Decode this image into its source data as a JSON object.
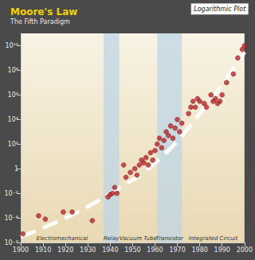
{
  "chart_data": {
    "type": "scatter",
    "title": "Moore's Law",
    "subtitle": "The Fifth Paradigm",
    "annotations": [
      "Logarithmic Plot"
    ],
    "log": "y",
    "grid": false,
    "xlim": [
      1900,
      2000
    ],
    "xticks": [
      1900,
      1910,
      1920,
      1930,
      1940,
      1950,
      1960,
      1970,
      1980,
      1990,
      2000
    ],
    "ylim": [
      1e-06,
      100000000000
    ],
    "yticks": [
      {
        "value": 1e-06,
        "label": "10⁻⁶"
      },
      {
        "value": 0.0001,
        "label": "10⁻⁴"
      },
      {
        "value": 0.01,
        "label": "10⁻²"
      },
      1,
      {
        "value": 100,
        "label": "10²"
      },
      {
        "value": 10000,
        "label": "10⁴"
      },
      {
        "value": 1000000,
        "label": "10⁶"
      },
      {
        "value": 100000000,
        "label": "10⁸"
      },
      {
        "value": 10000000000,
        "label": "10¹⁰"
      }
    ],
    "eras": [
      {
        "label": "Electromechanical",
        "start": 1900,
        "end": 1937
      },
      {
        "label": "Relay",
        "start": 1937,
        "end": 1944
      },
      {
        "label": "Vacuum Tube",
        "start": 1944,
        "end": 1961
      },
      {
        "label": "Transistor",
        "start": 1961,
        "end": 1972
      },
      {
        "label": "Integrated Circuit",
        "start": 1972,
        "end": 2000
      }
    ],
    "series": [
      {
        "type": "line",
        "color": "#ffffff",
        "line_style": "dashed",
        "x": [
          1900,
          1920,
          1940,
          1960,
          1980,
          2000
        ],
        "values": [
          3e-06,
          0.0001,
          0.01,
          3,
          30000,
          3000000000
        ]
      },
      {
        "type": "scatter",
        "color": "#b8262b",
        "marker": "circle",
        "x": [
          1901,
          1908,
          1911,
          1919,
          1923,
          1932,
          1939,
          1940,
          1941,
          1942,
          1943,
          1946,
          1947,
          1949,
          1951,
          1952,
          1953,
          1954,
          1955,
          1956,
          1957,
          1958,
          1959,
          1960,
          1961,
          1962,
          1963,
          1964,
          1965,
          1966,
          1967,
          1968,
          1969,
          1970,
          1971,
          1972,
          1975,
          1976,
          1977,
          1978,
          1979,
          1980,
          1982,
          1983,
          1985,
          1986,
          1987,
          1988,
          1989,
          1990,
          1992,
          1995,
          1997,
          1999,
          2000
        ],
        "values": [
          5e-06,
          0.00015,
          8e-05,
          0.0003,
          0.0003,
          6e-05,
          0.005,
          0.008,
          0.01,
          0.03,
          0.01,
          2,
          0.2,
          0.5,
          1,
          0.3,
          2,
          5,
          3,
          8,
          2,
          20,
          5,
          30,
          100,
          300,
          50,
          200,
          1000,
          500,
          3000,
          300,
          2000,
          10000,
          1000,
          5000,
          30000,
          100000,
          300000,
          100000,
          500000,
          300000,
          200000,
          100000,
          1000000,
          300000,
          500000,
          200000,
          300000,
          1000000,
          10000000,
          50000000,
          1000000000,
          5000000000,
          10000000000
        ]
      }
    ]
  }
}
